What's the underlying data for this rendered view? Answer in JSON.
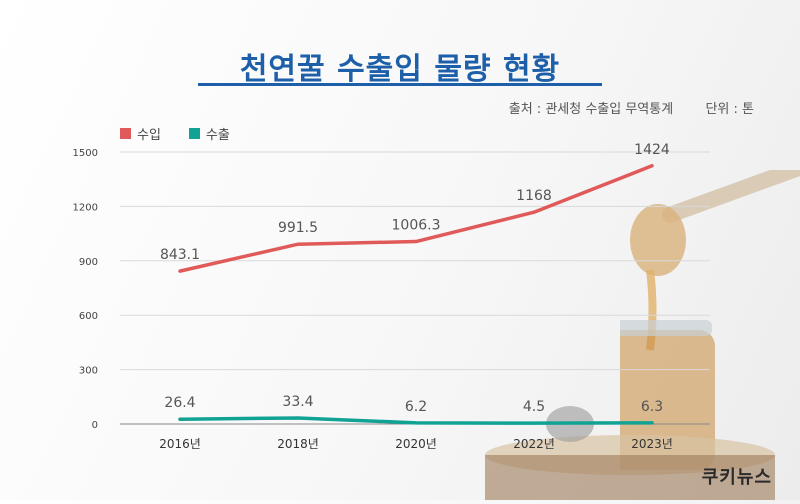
{
  "title": "천연꿀 수출입 물량 현황",
  "source": "출처 : 관세청 수출입 무역통계",
  "unit": "단위 : 톤",
  "watermark": "쿠키뉴스",
  "colors": {
    "title": "#1d5fa8",
    "import": "#e05a5a",
    "export": "#12a294",
    "grid": "#d9d9d9"
  },
  "chart_data": {
    "type": "line",
    "categories": [
      "2016년",
      "2018년",
      "2020년",
      "2022년",
      "2023년"
    ],
    "series": [
      {
        "name": "수입",
        "values": [
          843.1,
          991.5,
          1006.3,
          1168,
          1424
        ],
        "labels": [
          "843.1",
          "991.5",
          "1006.3",
          "1168",
          "1424"
        ]
      },
      {
        "name": "수출",
        "values": [
          26.4,
          33.4,
          6.2,
          4.5,
          6.3
        ],
        "labels": [
          "26.4",
          "33.4",
          "6.2",
          "4.5",
          "6.3"
        ]
      }
    ],
    "ylim": [
      0,
      1500
    ],
    "yticks": [
      0,
      300,
      600,
      900,
      1200,
      1500
    ],
    "grid": true,
    "legend": "top-left"
  }
}
